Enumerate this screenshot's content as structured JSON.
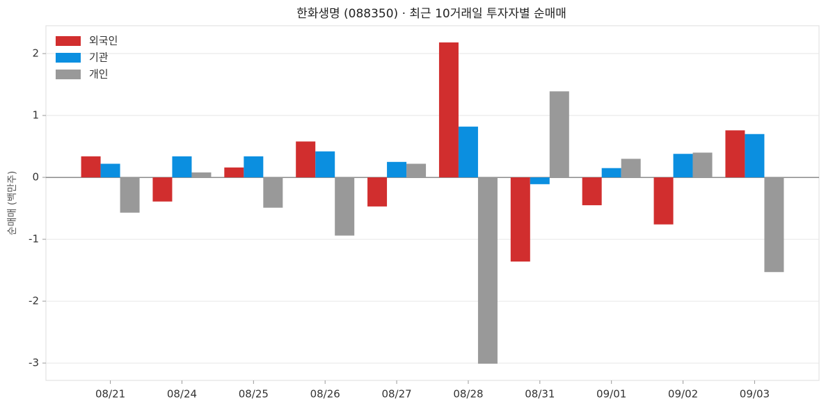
{
  "chart_data": {
    "type": "bar",
    "title": "한화생명 (088350) · 최근 10거래일 투자자별 순매매",
    "y_label": "순매매 (백만주)",
    "categories": [
      "08/21",
      "08/24",
      "08/25",
      "08/26",
      "08/27",
      "08/28",
      "08/31",
      "09/01",
      "09/02",
      "09/03"
    ],
    "series": [
      {
        "name": "외국인",
        "color": "#d12e2e",
        "values": [
          0.34,
          -0.39,
          0.16,
          0.58,
          -0.47,
          2.18,
          -1.36,
          -0.45,
          -0.76,
          0.76
        ]
      },
      {
        "name": "기관",
        "color": "#0b8fe0",
        "values": [
          0.22,
          0.34,
          0.34,
          0.42,
          0.25,
          0.82,
          -0.11,
          0.15,
          0.38,
          0.7
        ]
      },
      {
        "name": "개인",
        "color": "#999999",
        "values": [
          -0.57,
          0.08,
          -0.49,
          -0.94,
          0.22,
          -3.01,
          1.39,
          0.3,
          0.4,
          -1.53
        ]
      }
    ],
    "ylim": [
      -3.28,
      2.45
    ],
    "yticks": [
      -3,
      -2,
      -1,
      0,
      1,
      2
    ],
    "grid": true,
    "legend": "upper-left"
  }
}
